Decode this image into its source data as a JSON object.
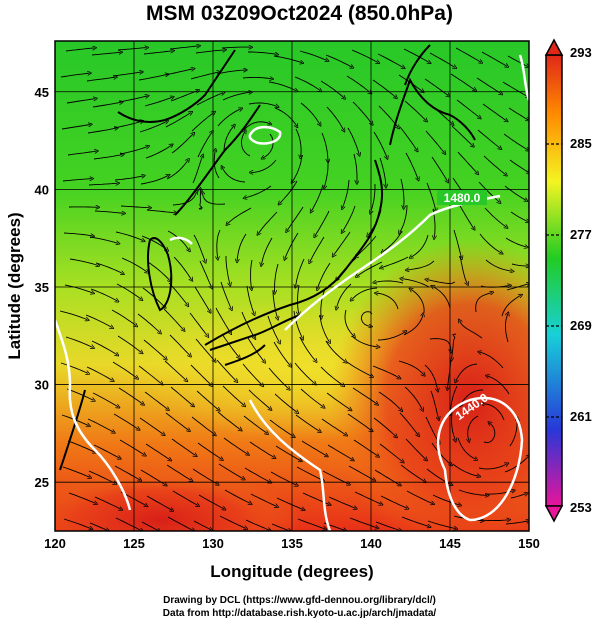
{
  "title": "MSM 03Z09Oct2024 (850.0hPa)",
  "map": {
    "lon_range": [
      120,
      150
    ],
    "lat_range": [
      22.5,
      47.6
    ],
    "x_ticks": [
      "120",
      "125",
      "130",
      "135",
      "140",
      "145",
      "150"
    ],
    "y_ticks": [
      "25",
      "30",
      "35",
      "40",
      "45"
    ],
    "xlabel": "Longitude (degrees)",
    "ylabel": "Latitude  (degrees)",
    "contour_label_1": "1480.0",
    "contour_label_2": "1440.0"
  },
  "colorbar": {
    "ticks": [
      "293",
      "285",
      "277",
      "269",
      "261",
      "253"
    ],
    "stops": [
      "#e8149a",
      "#2838d8",
      "#18d0d8",
      "#22cc22",
      "#f4f422",
      "#ff8a00",
      "#e02818"
    ]
  },
  "credits": {
    "line1": "Drawing by DCL (https://www.gfd-dennou.org/library/dcl/)",
    "line2": "Data from http://database.rish.kyoto-u.ac.jp/arch/jmadata/"
  }
}
